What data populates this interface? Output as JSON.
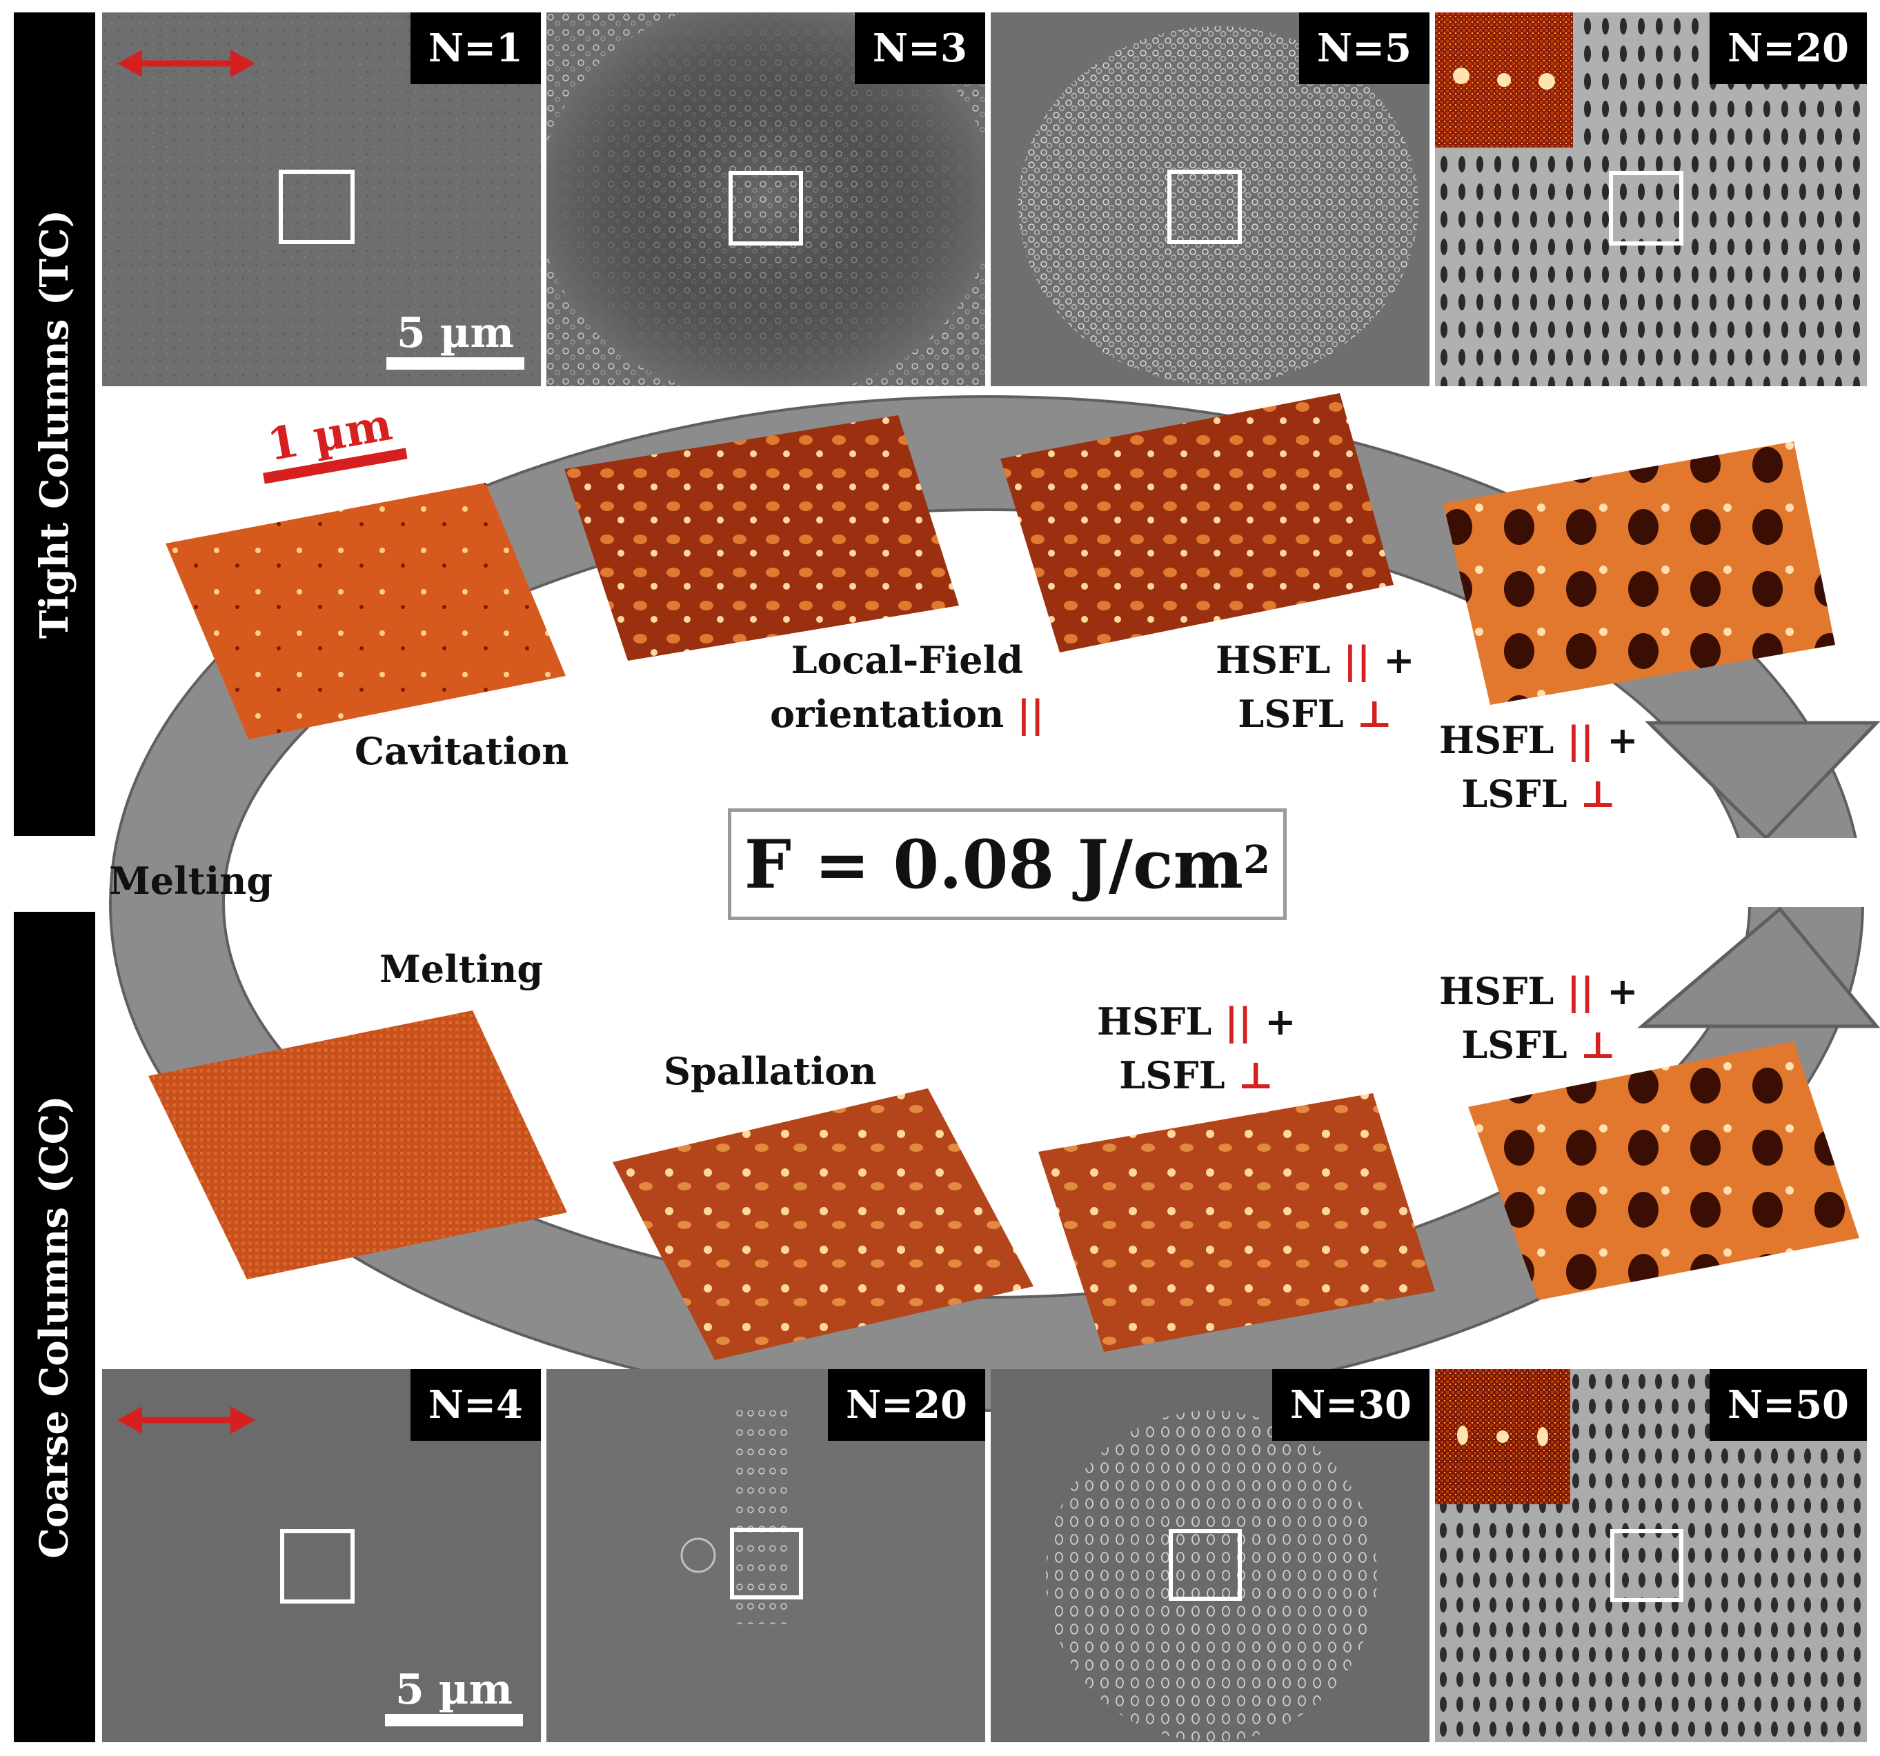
{
  "sidebars": {
    "tc": "Tight Columns (TC)",
    "cc": "Coarse Columns (CC)"
  },
  "top_panels": [
    "N=1",
    "N=3",
    "N=5",
    "N=20"
  ],
  "bottom_panels": [
    "N=4",
    "N=20",
    "N=30",
    "N=50"
  ],
  "scale_sem": "5 µm",
  "scale_afm": "1 µm",
  "fluence": {
    "prefix": "F = 0.08 J/cm",
    "exp": "2"
  },
  "labels": {
    "melting_left": "Melting",
    "cavitation": "Cavitation",
    "local_field_line1": "Local-Field",
    "local_field_line2": "orientation",
    "parallel": "||",
    "perp": "⊥",
    "hsfl": "HSFL",
    "lsfl": "LSFL",
    "plus": "+",
    "melting_bottom": "Melting",
    "spallation": "Spallation"
  },
  "colors": {
    "accent": "#d61f1f",
    "arrow": "#8a8a8a",
    "sidebar": "#000000"
  }
}
